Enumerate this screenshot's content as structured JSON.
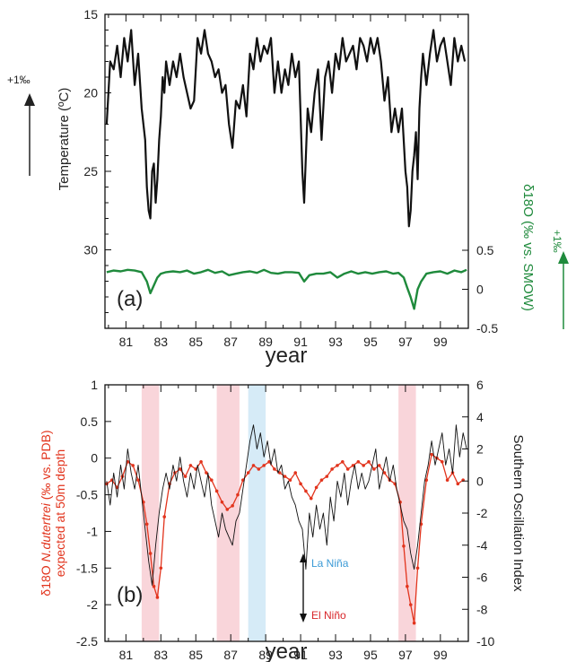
{
  "colors": {
    "black": "#111111",
    "green": "#1f8a3c",
    "red": "#e2341d",
    "elnino_band": "#f9d5da",
    "lanina_band": "#d6ebf7",
    "lanina_text": "#3b9ad6",
    "elnino_text": "#d8262a"
  },
  "chart_data": [
    {
      "type": "line",
      "panel_label": "(a)",
      "xlabel": "year",
      "x_ticks": [
        81,
        83,
        85,
        87,
        89,
        91,
        93,
        95,
        97,
        99
      ],
      "xlim": [
        79.8,
        100.6
      ],
      "left_axis": {
        "label": "Temperature (ºC)",
        "ylim": [
          35,
          15
        ],
        "ticks": [
          15,
          20,
          25,
          30
        ],
        "inverted": true
      },
      "right_axis": {
        "label": "δ18O (‰ vs. SMOW)",
        "ylim": [
          -0.5,
          0.5
        ],
        "ticks": [
          0.5,
          0,
          -0.5
        ]
      },
      "annotation_left": "+1‰",
      "annotation_right": "+1‰",
      "series": [
        {
          "axis": "left",
          "color": "black",
          "x": [
            79.9,
            80.1,
            80.3,
            80.5,
            80.7,
            80.9,
            81.1,
            81.3,
            81.5,
            81.7,
            81.9,
            82.1,
            82.2,
            82.3,
            82.4,
            82.5,
            82.6,
            82.7,
            82.8,
            82.9,
            83.0,
            83.1,
            83.2,
            83.3,
            83.5,
            83.7,
            83.9,
            84.1,
            84.3,
            84.5,
            84.7,
            84.9,
            85.1,
            85.3,
            85.5,
            85.7,
            85.9,
            86.1,
            86.3,
            86.5,
            86.7,
            86.9,
            87.1,
            87.3,
            87.5,
            87.7,
            87.9,
            88.1,
            88.3,
            88.5,
            88.7,
            88.9,
            89.1,
            89.3,
            89.5,
            89.7,
            89.9,
            90.1,
            90.3,
            90.5,
            90.7,
            90.9,
            91.1,
            91.2,
            91.4,
            91.6,
            91.8,
            92.0,
            92.2,
            92.4,
            92.6,
            92.8,
            93.0,
            93.2,
            93.4,
            93.6,
            93.8,
            94.0,
            94.2,
            94.4,
            94.6,
            94.8,
            95.0,
            95.2,
            95.4,
            95.6,
            95.8,
            96.0,
            96.2,
            96.4,
            96.6,
            96.8,
            97.0,
            97.1,
            97.2,
            97.3,
            97.4,
            97.5,
            97.6,
            97.7,
            97.8,
            97.9,
            98.0,
            98.2,
            98.4,
            98.6,
            98.8,
            99.0,
            99.2,
            99.4,
            99.6,
            99.8,
            100.0,
            100.2,
            100.4
          ],
          "values": [
            22,
            18,
            18.5,
            17,
            19,
            16.5,
            18,
            16,
            19.5,
            17.5,
            21,
            23,
            26,
            27.5,
            28,
            25,
            24.5,
            27,
            25.5,
            23,
            21.5,
            19,
            20,
            18,
            19.5,
            18,
            19,
            17.5,
            19,
            20,
            21,
            20.5,
            16.5,
            17.5,
            16,
            17.5,
            18,
            19,
            18.5,
            20,
            19.5,
            22,
            23.5,
            20.5,
            21,
            19.5,
            21.5,
            17.5,
            18.5,
            16.5,
            18,
            17,
            17.5,
            16.5,
            20,
            18,
            20,
            18.5,
            19.5,
            17.5,
            19,
            18,
            25,
            27,
            21,
            22.5,
            20,
            18.5,
            23,
            19,
            18,
            20,
            17.5,
            18.5,
            16.5,
            18,
            17.5,
            17,
            18.5,
            16.5,
            17,
            18,
            16.5,
            17.5,
            16.5,
            18,
            20.5,
            19,
            22.5,
            21,
            22.5,
            21,
            25,
            26,
            28.5,
            27.5,
            25,
            24,
            22.5,
            25.5,
            21,
            19,
            17.5,
            19.5,
            17.5,
            16,
            18,
            17,
            16.5,
            18,
            19.5,
            16.5,
            18,
            17,
            18
          ],
          "name": ""
        },
        {
          "axis": "right",
          "color": "green",
          "x": [
            79.9,
            80.3,
            80.7,
            81.1,
            81.5,
            81.9,
            82.2,
            82.4,
            82.6,
            82.8,
            83.0,
            83.3,
            83.7,
            84.1,
            84.5,
            84.9,
            85.3,
            85.7,
            86.1,
            86.5,
            86.9,
            87.3,
            87.7,
            88.1,
            88.5,
            88.9,
            89.3,
            89.7,
            90.1,
            90.5,
            90.9,
            91.2,
            91.5,
            91.9,
            92.3,
            92.7,
            93.1,
            93.5,
            93.9,
            94.3,
            94.7,
            95.1,
            95.5,
            95.9,
            96.3,
            96.6,
            96.9,
            97.1,
            97.3,
            97.5,
            97.7,
            97.9,
            98.2,
            98.6,
            99.0,
            99.4,
            99.8,
            100.2,
            100.5
          ],
          "values": [
            0.22,
            0.24,
            0.23,
            0.25,
            0.24,
            0.22,
            0.1,
            -0.05,
            0.05,
            0.15,
            0.2,
            0.22,
            0.23,
            0.22,
            0.24,
            0.2,
            0.22,
            0.25,
            0.21,
            0.23,
            0.18,
            0.2,
            0.22,
            0.23,
            0.21,
            0.25,
            0.21,
            0.2,
            0.22,
            0.22,
            0.21,
            0.1,
            0.18,
            0.2,
            0.2,
            0.22,
            0.15,
            0.2,
            0.23,
            0.2,
            0.22,
            0.2,
            0.22,
            0.23,
            0.2,
            0.21,
            0.15,
            0.02,
            -0.1,
            -0.25,
            0.0,
            0.1,
            0.2,
            0.22,
            0.23,
            0.2,
            0.24,
            0.22,
            0.25
          ],
          "name": ""
        }
      ]
    },
    {
      "type": "line",
      "panel_label": "(b)",
      "xlabel": "year",
      "x_ticks": [
        81,
        83,
        85,
        87,
        89,
        91,
        93,
        95,
        97,
        99
      ],
      "xlim": [
        79.8,
        100.6
      ],
      "left_axis": {
        "label_prefix": "δ18O ",
        "label_species": "N.dutertrei",
        "label_suffix": " (‰ vs. PDB)",
        "label_line2": "expected at 50m depth",
        "ylim": [
          -2.5,
          1
        ],
        "ticks": [
          1,
          0.5,
          0,
          -0.5,
          -1,
          -1.5,
          -2,
          -2.5
        ]
      },
      "right_axis": {
        "label": "Southern Oscillation Index",
        "ylim": [
          -10,
          6
        ],
        "ticks": [
          6,
          4,
          2,
          0,
          -2,
          -4,
          -6,
          -8,
          -10
        ]
      },
      "bands": [
        {
          "type": "elnino",
          "x0": 81.9,
          "x1": 82.9
        },
        {
          "type": "elnino",
          "x0": 86.2,
          "x1": 87.5
        },
        {
          "type": "lanina",
          "x0": 88.0,
          "x1": 89.0
        },
        {
          "type": "elnino",
          "x0": 96.6,
          "x1": 97.6
        }
      ],
      "legend_lanina": "La Niña",
      "legend_elnino": "El Niño",
      "series": [
        {
          "axis": "left",
          "color": "red",
          "x": [
            79.9,
            80.2,
            80.5,
            80.8,
            81.1,
            81.4,
            81.7,
            82.0,
            82.2,
            82.4,
            82.6,
            82.8,
            83.0,
            83.2,
            83.5,
            83.8,
            84.1,
            84.4,
            84.7,
            85.0,
            85.3,
            85.6,
            85.9,
            86.2,
            86.5,
            86.8,
            87.1,
            87.4,
            87.7,
            88.0,
            88.3,
            88.6,
            88.9,
            89.2,
            89.5,
            89.8,
            90.1,
            90.4,
            90.7,
            91.0,
            91.3,
            91.6,
            91.9,
            92.2,
            92.5,
            92.8,
            93.1,
            93.4,
            93.7,
            94.0,
            94.3,
            94.6,
            94.9,
            95.2,
            95.5,
            95.8,
            96.1,
            96.4,
            96.7,
            96.9,
            97.1,
            97.3,
            97.5,
            97.7,
            97.9,
            98.2,
            98.5,
            98.8,
            99.1,
            99.4,
            99.7,
            100.0,
            100.3
          ],
          "values": [
            -0.35,
            -0.3,
            -0.4,
            -0.25,
            -0.05,
            -0.1,
            -0.3,
            -0.6,
            -0.9,
            -1.3,
            -1.75,
            -1.9,
            -1.5,
            -0.8,
            -0.35,
            -0.2,
            -0.15,
            -0.25,
            -0.1,
            -0.15,
            -0.05,
            -0.2,
            -0.3,
            -0.45,
            -0.6,
            -0.7,
            -0.65,
            -0.5,
            -0.3,
            -0.2,
            -0.1,
            -0.15,
            -0.1,
            -0.05,
            -0.15,
            -0.2,
            -0.25,
            -0.3,
            -0.2,
            -0.35,
            -0.45,
            -0.55,
            -0.4,
            -0.3,
            -0.25,
            -0.15,
            -0.1,
            -0.05,
            -0.15,
            -0.1,
            -0.05,
            -0.1,
            -0.05,
            -0.15,
            -0.1,
            -0.2,
            -0.3,
            -0.35,
            -0.6,
            -1.2,
            -1.75,
            -2.0,
            -2.25,
            -1.5,
            -0.9,
            -0.3,
            0.05,
            0.0,
            -0.05,
            -0.3,
            -0.2,
            -0.35,
            -0.3
          ],
          "name": ""
        },
        {
          "axis": "right",
          "color": "black",
          "x": [
            79.9,
            80.1,
            80.3,
            80.5,
            80.7,
            80.9,
            81.1,
            81.3,
            81.5,
            81.7,
            81.9,
            82.1,
            82.3,
            82.5,
            82.7,
            82.9,
            83.1,
            83.3,
            83.5,
            83.7,
            83.9,
            84.1,
            84.3,
            84.5,
            84.7,
            84.9,
            85.1,
            85.3,
            85.5,
            85.7,
            85.9,
            86.1,
            86.3,
            86.5,
            86.7,
            86.9,
            87.1,
            87.3,
            87.5,
            87.7,
            87.9,
            88.1,
            88.3,
            88.5,
            88.7,
            88.9,
            89.1,
            89.3,
            89.5,
            89.7,
            89.9,
            90.1,
            90.3,
            90.5,
            90.7,
            90.9,
            91.1,
            91.3,
            91.5,
            91.7,
            91.9,
            92.1,
            92.3,
            92.5,
            92.7,
            92.9,
            93.1,
            93.3,
            93.5,
            93.7,
            93.9,
            94.1,
            94.3,
            94.5,
            94.7,
            94.9,
            95.1,
            95.3,
            95.5,
            95.7,
            95.9,
            96.1,
            96.3,
            96.5,
            96.7,
            96.9,
            97.1,
            97.3,
            97.5,
            97.7,
            97.9,
            98.1,
            98.3,
            98.5,
            98.7,
            98.9,
            99.1,
            99.3,
            99.5,
            99.7,
            99.9,
            100.1,
            100.3,
            100.5
          ],
          "values": [
            0,
            -1.5,
            0.5,
            -1,
            1,
            -0.5,
            2,
            0.5,
            -0.5,
            1,
            -1,
            -3,
            -5,
            -6.5,
            -4,
            -2,
            -0.5,
            0.5,
            -0.5,
            1,
            0,
            1.5,
            0,
            -1,
            0.5,
            -0.5,
            1,
            0,
            -1,
            0.5,
            -1.5,
            -2.5,
            -3.5,
            -2,
            -3,
            -3.5,
            -4,
            -2.5,
            -2,
            -0.5,
            1,
            2.5,
            3.5,
            2,
            3,
            1.5,
            2.5,
            1,
            2,
            0.5,
            1,
            -0.5,
            0,
            -1,
            -1.5,
            -2.5,
            -3,
            -5.5,
            -2,
            -3.5,
            -1.5,
            -3,
            -2,
            -4,
            -1,
            -2.5,
            0,
            -1,
            0.5,
            -1.5,
            0,
            1,
            -0.5,
            0.5,
            -0.5,
            0,
            1,
            2,
            -0.5,
            0.5,
            1.5,
            0,
            1,
            -0.5,
            -1.5,
            -2.5,
            -3,
            -4.5,
            -5.5,
            -4,
            -2,
            0,
            1,
            2.5,
            1,
            2,
            3,
            1,
            2,
            0.5,
            3.5,
            1.5,
            3,
            2
          ],
          "name": ""
        }
      ]
    }
  ]
}
